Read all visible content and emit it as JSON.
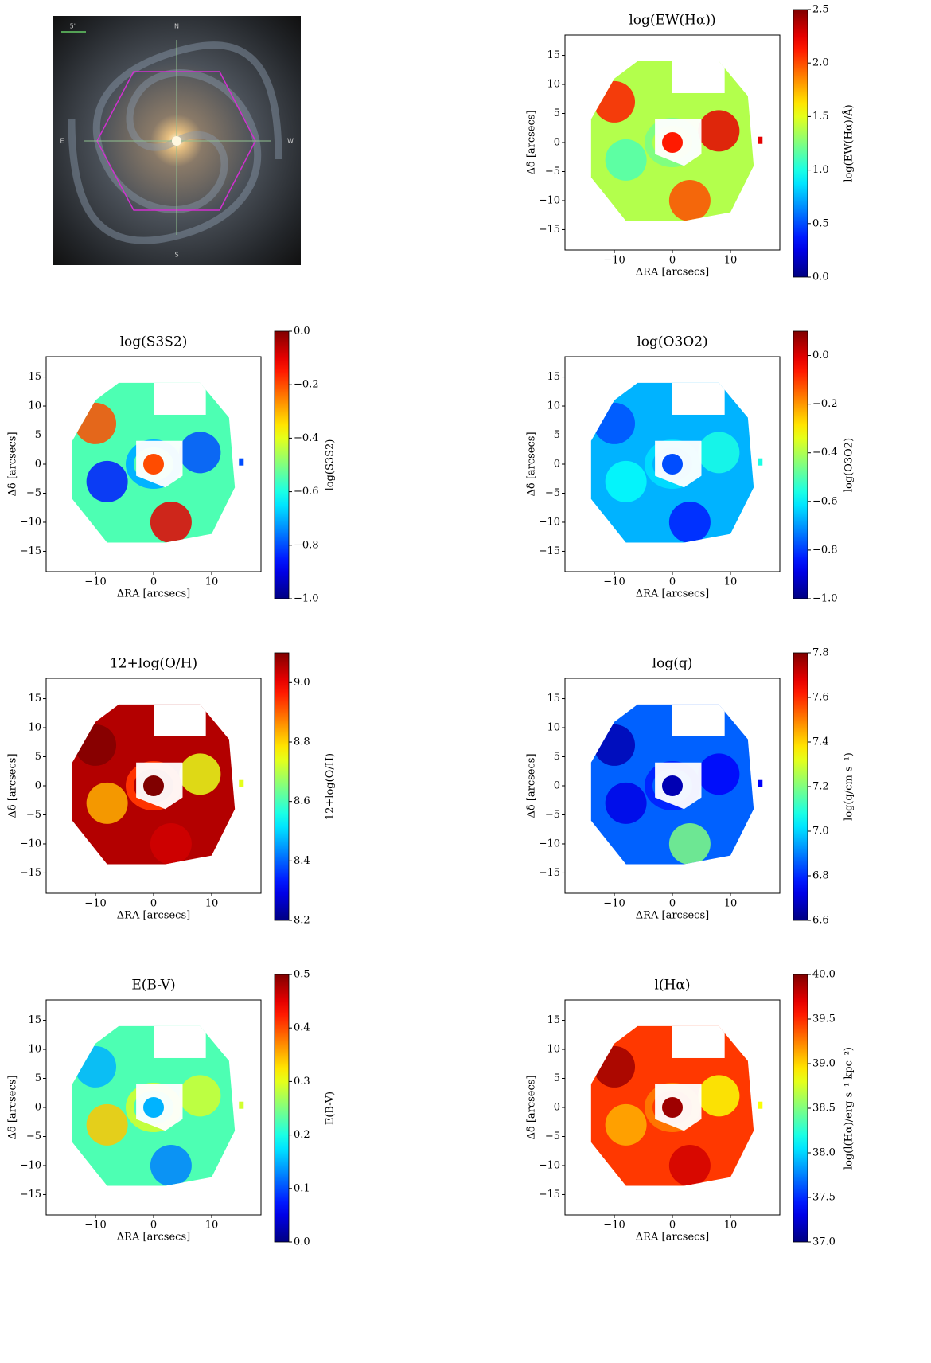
{
  "chart_data": [
    {
      "type": "image",
      "annotations": [
        "N",
        "S",
        "E",
        "W",
        "5\""
      ]
    },
    {
      "type": "heatmap",
      "title": "log(EW(Hα))",
      "x_label": "ΔRA [arcsecs]",
      "y_label": "Δδ [arcsecs]",
      "colormap": "jet",
      "xlim": [
        -18.5,
        18.5
      ],
      "ylim": [
        -18.5,
        18.5
      ],
      "xticks": [
        {
          "value": -10,
          "label": "−10"
        },
        0,
        10
      ],
      "yticks": [
        {
          "value": -15,
          "label": "−15"
        },
        {
          "value": -10,
          "label": "−10"
        },
        {
          "value": -5,
          "label": "−5"
        },
        0,
        5,
        10,
        15
      ],
      "colorbar_label": "log(EW(Hα)/Å)",
      "clim": [
        0,
        2.5
      ],
      "cticks": [
        {
          "value": 0,
          "label": "0.0"
        },
        0.5,
        {
          "value": 1,
          "label": "1.0"
        },
        1.5,
        {
          "value": 2,
          "label": "2.0"
        },
        2.5
      ]
    },
    {
      "type": "heatmap",
      "title": "log(S3S2)",
      "x_label": "ΔRA [arcsecs]",
      "y_label": "Δδ [arcsecs]",
      "colormap": "jet",
      "xlim": [
        -18.5,
        18.5
      ],
      "ylim": [
        -18.5,
        18.5
      ],
      "xticks": [
        {
          "value": -10,
          "label": "−10"
        },
        0,
        10
      ],
      "yticks": [
        {
          "value": -15,
          "label": "−15"
        },
        {
          "value": -10,
          "label": "−10"
        },
        {
          "value": -5,
          "label": "−5"
        },
        0,
        5,
        10,
        15
      ],
      "colorbar_label": "log(S3S2)",
      "clim": [
        -1,
        0
      ],
      "cticks": [
        {
          "value": -1,
          "label": "−1.0"
        },
        {
          "value": -0.8,
          "label": "−0.8"
        },
        {
          "value": -0.6,
          "label": "−0.6"
        },
        {
          "value": -0.4,
          "label": "−0.4"
        },
        {
          "value": -0.2,
          "label": "−0.2"
        },
        {
          "value": 0,
          "label": "0.0"
        }
      ]
    },
    {
      "type": "heatmap",
      "title": "log(O3O2)",
      "x_label": "ΔRA [arcsecs]",
      "y_label": "Δδ [arcsecs]",
      "colormap": "jet",
      "xlim": [
        -18.5,
        18.5
      ],
      "ylim": [
        -18.5,
        18.5
      ],
      "xticks": [
        {
          "value": -10,
          "label": "−10"
        },
        0,
        10
      ],
      "yticks": [
        {
          "value": -15,
          "label": "−15"
        },
        {
          "value": -10,
          "label": "−10"
        },
        {
          "value": -5,
          "label": "−5"
        },
        0,
        5,
        10,
        15
      ],
      "colorbar_label": "log(O3O2)",
      "clim": [
        -1,
        0.1
      ],
      "cticks": [
        {
          "value": -1,
          "label": "−1.0"
        },
        {
          "value": -0.8,
          "label": "−0.8"
        },
        {
          "value": -0.6,
          "label": "−0.6"
        },
        {
          "value": -0.4,
          "label": "−0.4"
        },
        {
          "value": -0.2,
          "label": "−0.2"
        },
        {
          "value": 0,
          "label": "0.0"
        }
      ]
    },
    {
      "type": "heatmap",
      "title": "12+log(O/H)",
      "x_label": "ΔRA [arcsecs]",
      "y_label": "Δδ [arcsecs]",
      "colormap": "jet",
      "xlim": [
        -18.5,
        18.5
      ],
      "ylim": [
        -18.5,
        18.5
      ],
      "xticks": [
        {
          "value": -10,
          "label": "−10"
        },
        0,
        10
      ],
      "yticks": [
        {
          "value": -15,
          "label": "−15"
        },
        {
          "value": -10,
          "label": "−10"
        },
        {
          "value": -5,
          "label": "−5"
        },
        0,
        5,
        10,
        15
      ],
      "colorbar_label": "12+log(O/H)",
      "clim": [
        8.2,
        9.1
      ],
      "cticks": [
        8.2,
        8.4,
        8.6,
        8.8,
        {
          "value": 9,
          "label": "9.0"
        }
      ]
    },
    {
      "type": "heatmap",
      "title": "log(q)",
      "x_label": "ΔRA [arcsecs]",
      "y_label": "Δδ [arcsecs]",
      "colormap": "jet",
      "xlim": [
        -18.5,
        18.5
      ],
      "ylim": [
        -18.5,
        18.5
      ],
      "xticks": [
        {
          "value": -10,
          "label": "−10"
        },
        0,
        10
      ],
      "yticks": [
        {
          "value": -15,
          "label": "−15"
        },
        {
          "value": -10,
          "label": "−10"
        },
        {
          "value": -5,
          "label": "−5"
        },
        0,
        5,
        10,
        15
      ],
      "colorbar_label": "log(q/cm s⁻¹)",
      "clim": [
        6.6,
        7.8
      ],
      "cticks": [
        6.6,
        6.8,
        {
          "value": 7,
          "label": "7.0"
        },
        7.2,
        7.4,
        7.6,
        7.8
      ]
    },
    {
      "type": "heatmap",
      "title": "E(B-V)",
      "x_label": "ΔRA [arcsecs]",
      "y_label": "Δδ [arcsecs]",
      "colormap": "jet",
      "xlim": [
        -18.5,
        18.5
      ],
      "ylim": [
        -18.5,
        18.5
      ],
      "xticks": [
        {
          "value": -10,
          "label": "−10"
        },
        0,
        10
      ],
      "yticks": [
        {
          "value": -15,
          "label": "−15"
        },
        {
          "value": -10,
          "label": "−10"
        },
        {
          "value": -5,
          "label": "−5"
        },
        0,
        5,
        10,
        15
      ],
      "colorbar_label": "E(B-V)",
      "clim": [
        0,
        0.5
      ],
      "cticks": [
        {
          "value": 0,
          "label": "0.0"
        },
        0.1,
        0.2,
        0.3,
        0.4,
        0.5
      ]
    },
    {
      "type": "heatmap",
      "title": "l(Hα)",
      "x_label": "ΔRA [arcsecs]",
      "y_label": "Δδ [arcsecs]",
      "colormap": "jet",
      "xlim": [
        -18.5,
        18.5
      ],
      "ylim": [
        -18.5,
        18.5
      ],
      "xticks": [
        {
          "value": -10,
          "label": "−10"
        },
        0,
        10
      ],
      "yticks": [
        {
          "value": -15,
          "label": "−15"
        },
        {
          "value": -10,
          "label": "−10"
        },
        {
          "value": -5,
          "label": "−5"
        },
        0,
        5,
        10,
        15
      ],
      "colorbar_label": "log(l(Hα)/erg s⁻¹ kpc⁻²)",
      "clim": [
        37,
        40
      ],
      "cticks": [
        {
          "value": 37,
          "label": "37.0"
        },
        37.5,
        {
          "value": 38,
          "label": "38.0"
        },
        38.5,
        {
          "value": 39,
          "label": "39.0"
        },
        39.5,
        {
          "value": 40,
          "label": "40.0"
        }
      ]
    }
  ]
}
